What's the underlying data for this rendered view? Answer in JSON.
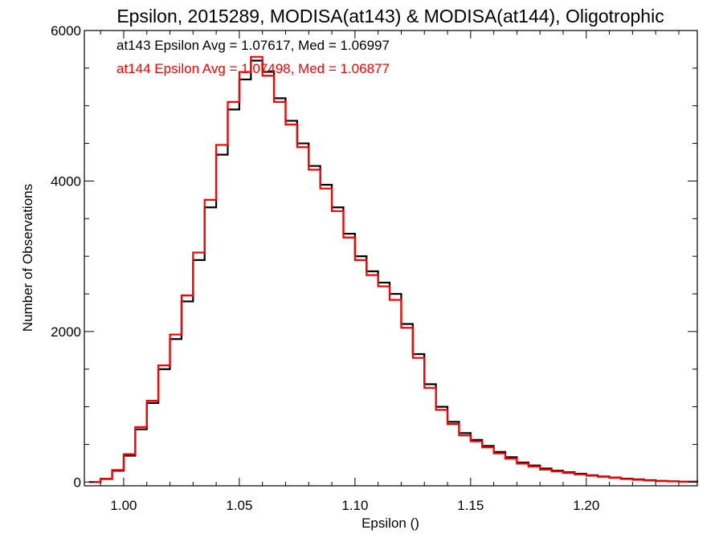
{
  "chart_data": {
    "type": "line",
    "title": "Epsilon, 2015289, MODISA(at143) & MODISA(at144), Oligotrophic",
    "xlabel": "Epsilon ()",
    "ylabel": "Number of Observations",
    "xlim": [
      0.983,
      1.248
    ],
    "ylim": [
      -50,
      6000
    ],
    "xticks": [
      1.0,
      1.05,
      1.1,
      1.15,
      1.2
    ],
    "xtick_labels": [
      "1.00",
      "1.05",
      "1.10",
      "1.15",
      "1.20"
    ],
    "yticks": [
      0,
      2000,
      4000,
      6000
    ],
    "ytick_labels": [
      "0",
      "2000",
      "4000",
      "6000"
    ],
    "grid": false,
    "annotations": [
      {
        "text": "at143 Epsilon Avg = 1.07617, Med = 1.06997",
        "color": "#000000"
      },
      {
        "text": "at144 Epsilon Avg = 1.07498, Med = 1.06877",
        "color": "#ff0000"
      }
    ],
    "step": true,
    "series": [
      {
        "color": "#000000",
        "x": [
          0.985,
          0.99,
          0.995,
          1.0,
          1.005,
          1.01,
          1.015,
          1.02,
          1.025,
          1.03,
          1.035,
          1.04,
          1.045,
          1.05,
          1.055,
          1.06,
          1.065,
          1.07,
          1.075,
          1.08,
          1.085,
          1.09,
          1.095,
          1.1,
          1.105,
          1.11,
          1.115,
          1.12,
          1.125,
          1.13,
          1.135,
          1.14,
          1.145,
          1.15,
          1.155,
          1.16,
          1.165,
          1.17,
          1.175,
          1.18,
          1.185,
          1.19,
          1.195,
          1.2,
          1.205,
          1.21,
          1.215,
          1.22,
          1.225,
          1.23,
          1.235,
          1.24,
          1.245,
          1.248
        ],
        "y": [
          0,
          40,
          150,
          350,
          700,
          1050,
          1500,
          1900,
          2400,
          2950,
          3650,
          4350,
          4950,
          5350,
          5600,
          5450,
          5100,
          4800,
          4500,
          4200,
          3950,
          3650,
          3300,
          3000,
          2800,
          2650,
          2500,
          2100,
          1700,
          1300,
          1000,
          800,
          650,
          560,
          480,
          400,
          330,
          260,
          220,
          180,
          150,
          130,
          110,
          90,
          75,
          60,
          45,
          35,
          25,
          15,
          10,
          5,
          5,
          0
        ]
      },
      {
        "color": "#ff0000",
        "x": [
          0.985,
          0.99,
          0.995,
          1.0,
          1.005,
          1.01,
          1.015,
          1.02,
          1.025,
          1.03,
          1.035,
          1.04,
          1.045,
          1.05,
          1.055,
          1.06,
          1.065,
          1.07,
          1.075,
          1.08,
          1.085,
          1.09,
          1.095,
          1.1,
          1.105,
          1.11,
          1.115,
          1.12,
          1.125,
          1.13,
          1.135,
          1.14,
          1.145,
          1.15,
          1.155,
          1.16,
          1.165,
          1.17,
          1.175,
          1.18,
          1.185,
          1.19,
          1.195,
          1.2,
          1.205,
          1.21,
          1.215,
          1.22,
          1.225,
          1.23,
          1.235,
          1.24,
          1.245,
          1.248
        ],
        "y": [
          0,
          45,
          160,
          370,
          730,
          1080,
          1550,
          1960,
          2480,
          3050,
          3750,
          4480,
          5050,
          5450,
          5650,
          5400,
          5050,
          4750,
          4450,
          4150,
          3900,
          3600,
          3250,
          2950,
          2750,
          2600,
          2420,
          2050,
          1650,
          1250,
          960,
          770,
          620,
          540,
          460,
          380,
          310,
          245,
          205,
          165,
          140,
          120,
          100,
          85,
          70,
          55,
          40,
          30,
          20,
          12,
          8,
          4,
          3,
          0
        ]
      }
    ]
  }
}
